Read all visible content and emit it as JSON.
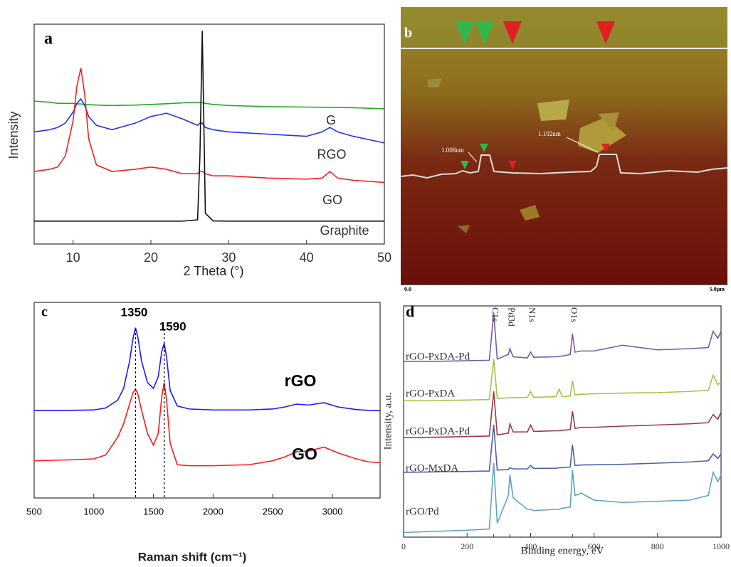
{
  "chart_data": [
    {
      "type": "line",
      "panel_label": "a",
      "xlabel": "2 Theta (°)",
      "ylabel": "Intensity",
      "x": [
        5,
        7,
        8,
        9,
        10,
        10.5,
        11,
        11.5,
        12,
        13,
        15,
        18,
        20,
        22,
        24,
        26,
        26.3,
        26.6,
        27,
        28,
        30,
        35,
        40,
        42,
        43,
        44,
        46,
        50
      ],
      "series": [
        {
          "name": "G",
          "color": "#22aa22",
          "values": [
            65,
            64.5,
            64,
            64,
            64,
            63.8,
            63.7,
            63.5,
            63.4,
            63.2,
            63,
            63.2,
            63.5,
            63.8,
            64.2,
            64.5,
            64.4,
            64.3,
            64,
            63.5,
            63,
            62.5,
            62.3,
            62.2,
            62.2,
            62.1,
            62,
            61.5
          ]
        },
        {
          "name": "RGO",
          "color": "#2233ee",
          "values": [
            51,
            52,
            53,
            55,
            60,
            64,
            66,
            63,
            58,
            54,
            52,
            55,
            58,
            59.5,
            57,
            54,
            55,
            55,
            53,
            52,
            51,
            50,
            49,
            51,
            53,
            51,
            49,
            46
          ]
        },
        {
          "name": "GO",
          "color": "#ee2222",
          "values": [
            33,
            34,
            35,
            40,
            56,
            72,
            80,
            68,
            48,
            36,
            33,
            34,
            35,
            34,
            32,
            32,
            33,
            33,
            32,
            31,
            31,
            30,
            29.5,
            30,
            33,
            30,
            29,
            28
          ]
        },
        {
          "name": "Graphite",
          "color": "#111111",
          "values": [
            10.4,
            10.4,
            10.4,
            10.4,
            10.4,
            10.4,
            10.4,
            10.4,
            10.4,
            10.4,
            10.4,
            10.4,
            10.4,
            10.4,
            10.4,
            11,
            40,
            97,
            14,
            10.5,
            10.4,
            10.4,
            10.4,
            10.4,
            10.4,
            10.4,
            10.4,
            10.4
          ]
        }
      ],
      "xlim": [
        5,
        50
      ],
      "xticks": [
        10,
        20,
        30,
        40,
        50
      ],
      "ylim": [
        0,
        100
      ]
    },
    {
      "type": "image",
      "panel_label": "b",
      "annotations": [
        "1.008nm",
        "1.102nm"
      ],
      "scale_labels": [
        "0.0",
        "5.0μm"
      ]
    },
    {
      "type": "line",
      "panel_label": "c",
      "xlabel": "Raman shift (cm⁻¹)",
      "x": [
        500,
        800,
        1000,
        1100,
        1200,
        1250,
        1300,
        1330,
        1350,
        1370,
        1400,
        1450,
        1500,
        1540,
        1570,
        1590,
        1610,
        1640,
        1700,
        1800,
        2000,
        2300,
        2500,
        2600,
        2700,
        2800,
        2930,
        3050,
        3200,
        3300,
        3400
      ],
      "series": [
        {
          "name": "rGO",
          "color": "#1a1aff",
          "values": [
            44.7,
            44.8,
            45,
            46,
            50,
            56,
            70,
            82,
            87,
            82,
            70,
            59,
            56,
            62,
            75,
            79,
            72,
            55,
            47,
            45.5,
            45,
            45,
            45.5,
            46.5,
            48,
            47.5,
            48.7,
            46.5,
            45.2,
            44.8,
            44.6
          ]
        },
        {
          "name": "GO",
          "color": "#ff1a1a",
          "values": [
            19,
            19.5,
            20,
            22,
            31,
            38,
            48,
            54,
            55.6,
            53,
            45,
            33,
            27,
            33,
            52,
            59,
            50,
            28,
            17,
            16.5,
            16.5,
            17,
            19,
            21,
            23.6,
            24,
            26,
            23,
            20,
            18.5,
            18
          ]
        }
      ],
      "peak_lines": [
        1350,
        1590
      ],
      "xlim": [
        500,
        3400
      ],
      "xticks": [
        500,
        1000,
        1500,
        2000,
        2500,
        3000
      ],
      "ylim": [
        0,
        100
      ]
    },
    {
      "type": "line",
      "panel_label": "d",
      "xlabel": "Binding energy, eV",
      "ylabel": "Intensity, a.u.",
      "x": [
        0,
        100,
        200,
        270,
        284,
        295,
        330,
        335,
        345,
        390,
        400,
        410,
        480,
        490,
        500,
        525,
        532,
        540,
        560,
        600,
        690,
        800,
        900,
        960,
        975,
        990,
        1000
      ],
      "series": [
        {
          "name": "rGO-PxDA-Pd",
          "color": "#7a5a9e",
          "values": [
            76,
            76,
            76.3,
            76.5,
            97,
            77,
            79,
            81.5,
            78,
            77.5,
            80,
            77.8,
            78,
            78.2,
            78.3,
            79,
            88,
            80,
            80.5,
            80.5,
            83,
            81,
            81.5,
            82,
            89,
            86,
            89
          ]
        },
        {
          "name": "rGO-PxDA",
          "color": "#a6c24a",
          "values": [
            59,
            59,
            59.3,
            59.5,
            77,
            60,
            60.2,
            60.3,
            60.3,
            60.4,
            63,
            60.5,
            60.7,
            64,
            60.8,
            61,
            67.7,
            61.5,
            61.8,
            62,
            62.3,
            62.5,
            63,
            63.5,
            70,
            66,
            67
          ]
        },
        {
          "name": "rGO-PxDA-Pd",
          "color": "#9b3a45",
          "values": [
            43,
            43.2,
            43.5,
            43.7,
            63,
            44.2,
            45,
            49,
            45.5,
            45.5,
            48.5,
            45.7,
            46,
            46,
            46.2,
            46.5,
            54.5,
            47,
            47.5,
            47.5,
            48,
            48.5,
            49,
            49.5,
            53,
            51,
            54
          ]
        },
        {
          "name": "rGO-MxDA",
          "color": "#4f5fa8",
          "values": [
            28,
            28.2,
            28.4,
            28.6,
            48.6,
            29,
            29.2,
            30,
            29.5,
            29.5,
            31,
            29.7,
            29.8,
            30,
            30,
            30.3,
            40,
            31,
            31.2,
            31.3,
            31.5,
            32,
            32.5,
            33,
            36,
            34,
            36
          ]
        },
        {
          "name": "rGO/Pd",
          "color": "#5aa5c0",
          "values": [
            2,
            2.5,
            3,
            3.5,
            32,
            6,
            18,
            27,
            17,
            12,
            12,
            11.5,
            12,
            12,
            12.5,
            13,
            29,
            18,
            19,
            16,
            15,
            15.5,
            16,
            18,
            28,
            24,
            27
          ]
        }
      ],
      "peak_labels": [
        {
          "value": 284,
          "label": "C1s"
        },
        {
          "value": 335,
          "label": "Pd3d"
        },
        {
          "value": 400,
          "label": "N1s"
        },
        {
          "value": 532,
          "label": "O1s"
        }
      ],
      "xlim": [
        0,
        1000
      ],
      "xticks": [
        0,
        200,
        400,
        600,
        800,
        1000
      ],
      "ylim": [
        0,
        100
      ]
    }
  ]
}
